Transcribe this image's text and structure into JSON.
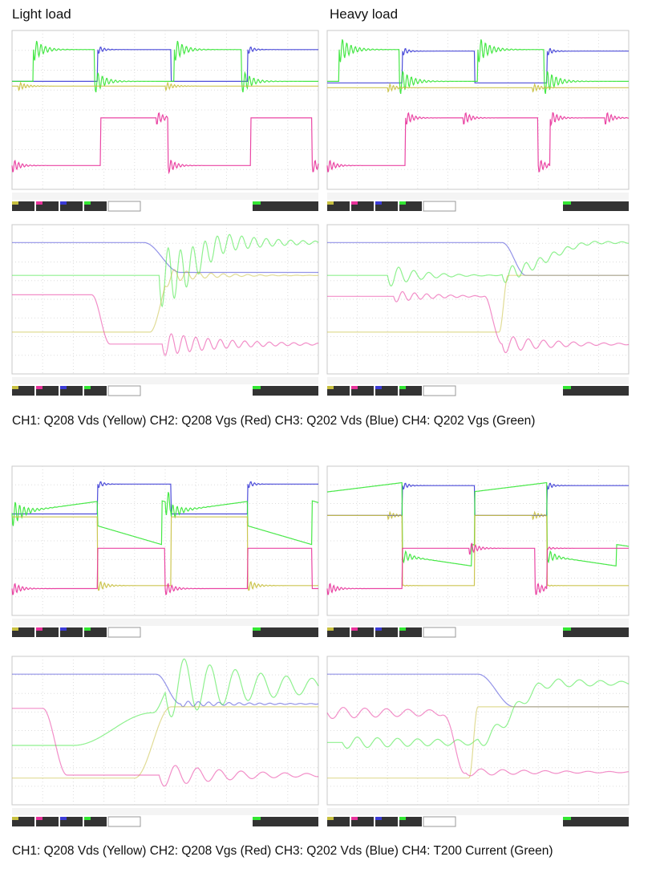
{
  "headers": {
    "left": "Light load",
    "right": "Heavy load"
  },
  "captions": [
    "CH1: Q208 Vds (Yellow) CH2: Q208 Vgs (Red) CH3: Q202 Vds (Blue) CH4: Q202 Vgs (Green)",
    "CH1: Q208 Vds (Yellow) CH2: Q208 Vgs (Red) CH3: Q202 Vds (Blue) CH4: T200 Current (Green)"
  ]
}
